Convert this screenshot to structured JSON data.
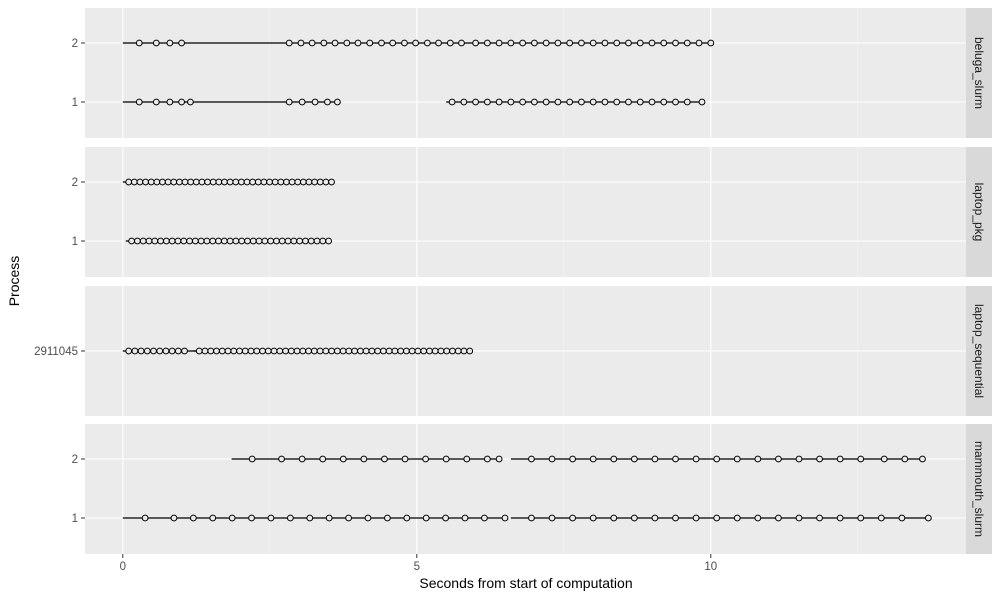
{
  "chart_data": {
    "type": "scatter",
    "xlabel": "Seconds from start of computation",
    "ylabel": "Process",
    "xlim": [
      -0.6,
      14.5
    ],
    "xticks": [
      0,
      5,
      10
    ],
    "xtick_labels": [
      "0",
      "5",
      "10"
    ],
    "facets": [
      {
        "name": "beluga_slurm",
        "processes": [
          "1",
          "2"
        ],
        "segments": [
          {
            "process": "2",
            "x_start": 0.0,
            "x_end": 10.0,
            "points": [
              0.28,
              0.57,
              0.8,
              1.0,
              2.83,
              3.03,
              3.22,
              3.42,
              3.61,
              3.81,
              4.0,
              4.2,
              4.4,
              4.59,
              4.79,
              4.98,
              5.18,
              5.37,
              5.57,
              5.76,
              6.0,
              6.2,
              6.4,
              6.6,
              6.8,
              7.0,
              7.2,
              7.4,
              7.6,
              7.8,
              8.0,
              8.2,
              8.4,
              8.6,
              8.8,
              9.0,
              9.2,
              9.4,
              9.6,
              9.8,
              10.0
            ]
          },
          {
            "process": "1",
            "x_start": 0.0,
            "x_end": 3.65,
            "points": [
              0.28,
              0.57,
              0.8,
              1.0,
              1.15,
              2.83,
              3.05,
              3.27,
              3.48,
              3.65
            ]
          },
          {
            "process": "1",
            "x_start": 5.5,
            "x_end": 9.85,
            "points": [
              5.6,
              5.8,
              6.0,
              6.2,
              6.4,
              6.6,
              6.8,
              7.0,
              7.2,
              7.4,
              7.6,
              7.8,
              8.0,
              8.2,
              8.4,
              8.6,
              8.8,
              9.0,
              9.2,
              9.4,
              9.6,
              9.85
            ]
          }
        ]
      },
      {
        "name": "laptop_pkg",
        "processes": [
          "1",
          "2"
        ],
        "segments": [
          {
            "process": "2",
            "x_start": 0.0,
            "x_end": 3.55,
            "range_points": [
              0.1,
              3.55,
              37
            ]
          },
          {
            "process": "1",
            "x_start": 0.05,
            "x_end": 3.5,
            "range_points": [
              0.15,
              3.5,
              35
            ]
          }
        ]
      },
      {
        "name": "laptop_sequential",
        "processes": [
          "2911045"
        ],
        "segments": [
          {
            "process": "2911045",
            "x_start": 0.0,
            "x_end": 5.9,
            "range_points": [
              0.1,
              1.05,
              10
            ]
          },
          {
            "process": "2911045",
            "x_start": 1.2,
            "x_end": 5.9,
            "range_points": [
              1.3,
              5.9,
              48
            ]
          }
        ]
      },
      {
        "name": "mammouth_slurm",
        "processes": [
          "1",
          "2"
        ],
        "segments": [
          {
            "process": "2",
            "x_start": 1.85,
            "x_end": 6.4,
            "points": [
              2.2,
              2.7,
              3.05,
              3.4,
              3.75,
              4.1,
              4.45,
              4.8,
              5.15,
              5.5,
              5.85,
              6.2,
              6.4
            ]
          },
          {
            "process": "2",
            "x_start": 6.6,
            "x_end": 13.6,
            "points": [
              6.95,
              7.3,
              7.65,
              8.0,
              8.35,
              8.7,
              9.05,
              9.4,
              9.75,
              10.1,
              10.45,
              10.8,
              11.15,
              11.5,
              11.85,
              12.2,
              12.55,
              12.95,
              13.3,
              13.6
            ]
          },
          {
            "process": "1",
            "x_start": 0.0,
            "x_end": 6.5,
            "points": [
              0.38,
              0.87,
              1.2,
              1.53,
              1.86,
              2.19,
              2.52,
              2.85,
              3.18,
              3.51,
              3.84,
              4.17,
              4.5,
              4.83,
              5.16,
              5.49,
              5.82,
              6.15,
              6.5
            ]
          },
          {
            "process": "1",
            "x_start": 6.6,
            "x_end": 13.7,
            "points": [
              6.95,
              7.3,
              7.65,
              8.0,
              8.35,
              8.7,
              9.05,
              9.4,
              9.75,
              10.1,
              10.45,
              10.8,
              11.15,
              11.5,
              11.85,
              12.2,
              12.55,
              12.9,
              13.25,
              13.7
            ]
          }
        ]
      }
    ]
  }
}
